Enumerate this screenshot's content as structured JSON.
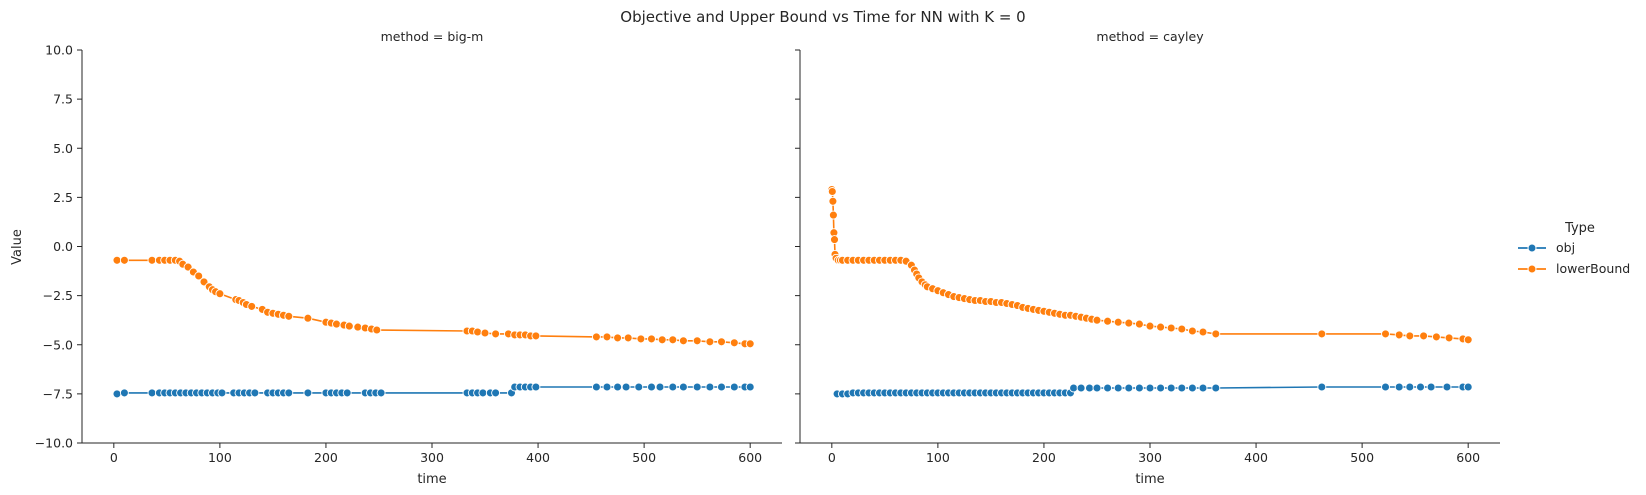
{
  "chart_data": {
    "type": "line",
    "title": "Objective and Upper Bound vs Time for NN with K = 0",
    "xlabel": "time",
    "ylabel": "Value",
    "xlim": [
      -30,
      630
    ],
    "ylim": [
      -10,
      10
    ],
    "xticks": [
      0,
      100,
      200,
      300,
      400,
      500,
      600
    ],
    "yticks": [
      -10.0,
      -7.5,
      -5.0,
      -2.5,
      0.0,
      2.5,
      5.0,
      7.5,
      10.0
    ],
    "ytick_labels": [
      "−10.0",
      "−7.5",
      "−5.0",
      "−2.5",
      "0.0",
      "2.5",
      "5.0",
      "7.5",
      "10.0"
    ],
    "legend": {
      "title": "Type",
      "placement": "right",
      "entries": [
        {
          "name": "obj",
          "color": "#1f77b4"
        },
        {
          "name": "lowerBound",
          "color": "#ff7f0e"
        }
      ]
    },
    "facets": [
      {
        "title": "method = big-m",
        "series": [
          {
            "name": "obj",
            "x": [
              3,
              10,
              36,
              43,
              48,
              53,
              58,
              63,
              68,
              73,
              78,
              83,
              88,
              93,
              98,
              102,
              113,
              118,
              123,
              128,
              133,
              145,
              150,
              155,
              160,
              165,
              183,
              200,
              205,
              210,
              215,
              220,
              237,
              242,
              247,
              252,
              333,
              338,
              343,
              348,
              355,
              360,
              375,
              378,
              383,
              388,
              393,
              398,
              455,
              465,
              475,
              483,
              495,
              507,
              515,
              527,
              537,
              550,
              562,
              573,
              585,
              595,
              600
            ],
            "y": [
              -7.5,
              -7.45,
              -7.45,
              -7.45,
              -7.45,
              -7.45,
              -7.45,
              -7.45,
              -7.45,
              -7.45,
              -7.45,
              -7.45,
              -7.45,
              -7.45,
              -7.45,
              -7.45,
              -7.45,
              -7.45,
              -7.45,
              -7.45,
              -7.45,
              -7.45,
              -7.45,
              -7.45,
              -7.45,
              -7.45,
              -7.45,
              -7.45,
              -7.45,
              -7.45,
              -7.45,
              -7.45,
              -7.45,
              -7.45,
              -7.45,
              -7.45,
              -7.45,
              -7.45,
              -7.45,
              -7.45,
              -7.45,
              -7.45,
              -7.45,
              -7.15,
              -7.15,
              -7.15,
              -7.15,
              -7.15,
              -7.15,
              -7.15,
              -7.15,
              -7.15,
              -7.15,
              -7.15,
              -7.15,
              -7.15,
              -7.15,
              -7.15,
              -7.15,
              -7.15,
              -7.15,
              -7.15,
              -7.15
            ]
          },
          {
            "name": "lowerBound",
            "x": [
              3,
              10,
              36,
              43,
              48,
              53,
              58,
              62,
              65,
              70,
              75,
              80,
              85,
              90,
              93,
              96,
              100,
              115,
              118,
              122,
              125,
              130,
              140,
              145,
              150,
              155,
              160,
              165,
              183,
              200,
              205,
              210,
              217,
              222,
              230,
              237,
              243,
              248,
              333,
              338,
              343,
              350,
              360,
              372,
              378,
              383,
              388,
              393,
              398,
              455,
              465,
              475,
              485,
              497,
              507,
              517,
              527,
              537,
              550,
              562,
              573,
              585,
              595,
              600
            ],
            "y": [
              -0.7,
              -0.7,
              -0.7,
              -0.7,
              -0.7,
              -0.7,
              -0.7,
              -0.75,
              -0.9,
              -1.05,
              -1.3,
              -1.5,
              -1.8,
              -2.05,
              -2.2,
              -2.3,
              -2.4,
              -2.7,
              -2.75,
              -2.85,
              -2.95,
              -3.05,
              -3.2,
              -3.35,
              -3.4,
              -3.45,
              -3.5,
              -3.55,
              -3.65,
              -3.85,
              -3.9,
              -3.95,
              -4.0,
              -4.05,
              -4.1,
              -4.15,
              -4.2,
              -4.25,
              -4.3,
              -4.3,
              -4.35,
              -4.4,
              -4.45,
              -4.45,
              -4.5,
              -4.5,
              -4.5,
              -4.55,
              -4.55,
              -4.6,
              -4.6,
              -4.65,
              -4.65,
              -4.7,
              -4.7,
              -4.75,
              -4.75,
              -4.8,
              -4.8,
              -4.85,
              -4.85,
              -4.9,
              -4.95,
              -4.95
            ]
          }
        ]
      },
      {
        "title": "method = cayley",
        "series": [
          {
            "name": "obj",
            "x": [
              5,
              10,
              15,
              20,
              25,
              30,
              35,
              40,
              45,
              50,
              55,
              60,
              65,
              70,
              75,
              80,
              85,
              90,
              95,
              100,
              105,
              110,
              115,
              120,
              125,
              130,
              135,
              140,
              145,
              150,
              155,
              160,
              165,
              170,
              175,
              180,
              185,
              190,
              195,
              200,
              205,
              210,
              215,
              220,
              225,
              228,
              235,
              243,
              250,
              260,
              270,
              280,
              290,
              300,
              310,
              320,
              330,
              340,
              350,
              362,
              462,
              522,
              535,
              545,
              555,
              565,
              580,
              595,
              600
            ],
            "y": [
              -7.5,
              -7.5,
              -7.5,
              -7.45,
              -7.45,
              -7.45,
              -7.45,
              -7.45,
              -7.45,
              -7.45,
              -7.45,
              -7.45,
              -7.45,
              -7.45,
              -7.45,
              -7.45,
              -7.45,
              -7.45,
              -7.45,
              -7.45,
              -7.45,
              -7.45,
              -7.45,
              -7.45,
              -7.45,
              -7.45,
              -7.45,
              -7.45,
              -7.45,
              -7.45,
              -7.45,
              -7.45,
              -7.45,
              -7.45,
              -7.45,
              -7.45,
              -7.45,
              -7.45,
              -7.45,
              -7.45,
              -7.45,
              -7.45,
              -7.45,
              -7.45,
              -7.45,
              -7.2,
              -7.2,
              -7.2,
              -7.2,
              -7.2,
              -7.2,
              -7.2,
              -7.2,
              -7.2,
              -7.2,
              -7.2,
              -7.2,
              -7.2,
              -7.2,
              -7.2,
              -7.15,
              -7.15,
              -7.15,
              -7.15,
              -7.15,
              -7.15,
              -7.15,
              -7.15,
              -7.15
            ]
          },
          {
            "name": "lowerBound",
            "x": [
              0,
              0.5,
              1,
              1.5,
              2,
              2.5,
              3,
              4,
              6,
              8,
              10,
              15,
              20,
              25,
              30,
              35,
              40,
              45,
              50,
              55,
              60,
              65,
              70,
              75,
              78,
              80,
              82,
              85,
              88,
              90,
              95,
              100,
              105,
              110,
              115,
              120,
              125,
              130,
              135,
              140,
              145,
              150,
              155,
              160,
              165,
              170,
              175,
              180,
              185,
              190,
              195,
              200,
              205,
              210,
              215,
              220,
              225,
              230,
              235,
              240,
              245,
              250,
              260,
              270,
              280,
              290,
              300,
              310,
              320,
              330,
              340,
              350,
              362,
              462,
              522,
              535,
              545,
              558,
              570,
              582,
              595,
              600
            ],
            "y": [
              2.9,
              2.8,
              2.3,
              1.6,
              0.7,
              0.35,
              -0.4,
              -0.6,
              -0.7,
              -0.7,
              -0.7,
              -0.7,
              -0.7,
              -0.7,
              -0.7,
              -0.7,
              -0.7,
              -0.7,
              -0.7,
              -0.7,
              -0.7,
              -0.7,
              -0.75,
              -0.95,
              -1.2,
              -1.4,
              -1.6,
              -1.8,
              -1.95,
              -2.05,
              -2.15,
              -2.25,
              -2.35,
              -2.45,
              -2.55,
              -2.6,
              -2.65,
              -2.7,
              -2.75,
              -2.75,
              -2.8,
              -2.8,
              -2.85,
              -2.85,
              -2.9,
              -2.95,
              -3.0,
              -3.1,
              -3.15,
              -3.2,
              -3.25,
              -3.3,
              -3.35,
              -3.4,
              -3.45,
              -3.5,
              -3.5,
              -3.55,
              -3.6,
              -3.65,
              -3.7,
              -3.75,
              -3.8,
              -3.85,
              -3.9,
              -3.95,
              -4.05,
              -4.1,
              -4.15,
              -4.2,
              -4.3,
              -4.35,
              -4.45,
              -4.45,
              -4.45,
              -4.5,
              -4.55,
              -4.55,
              -4.6,
              -4.65,
              -4.7,
              -4.75
            ]
          }
        ]
      }
    ]
  }
}
